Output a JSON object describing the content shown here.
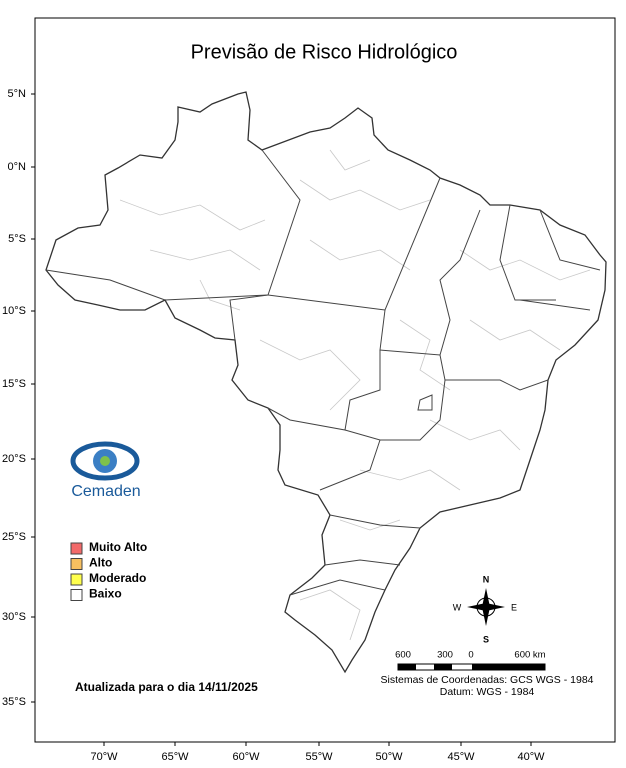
{
  "map": {
    "title": "Previsão de Risco Hidrológico",
    "lat_labels": [
      "5°N",
      "0°N",
      "5°S",
      "10°S",
      "15°S",
      "20°S",
      "25°S",
      "30°S",
      "35°S"
    ],
    "lon_labels": [
      "70°W",
      "65°W",
      "60°W",
      "55°W",
      "50°W",
      "45°W",
      "40°W"
    ],
    "legend": [
      {
        "label": "Muito Alto",
        "color": "#f26a6a"
      },
      {
        "label": "Alto",
        "color": "#f7c060"
      },
      {
        "label": "Moderado",
        "color": "#ffff4d"
      },
      {
        "label": "Baixo",
        "color": "#ffffff"
      }
    ],
    "logo": "Cemaden",
    "compass": {
      "n": "N",
      "s": "S",
      "e": "E",
      "w": "W"
    },
    "scale_labels": [
      "600",
      "300",
      "0",
      "600 km"
    ],
    "crs": [
      "Sistemas de Coordenadas: GCS WGS - 1984",
      "Datum: WGS - 1984"
    ],
    "updated": "Atualizada para o dia 14/11/2025"
  }
}
